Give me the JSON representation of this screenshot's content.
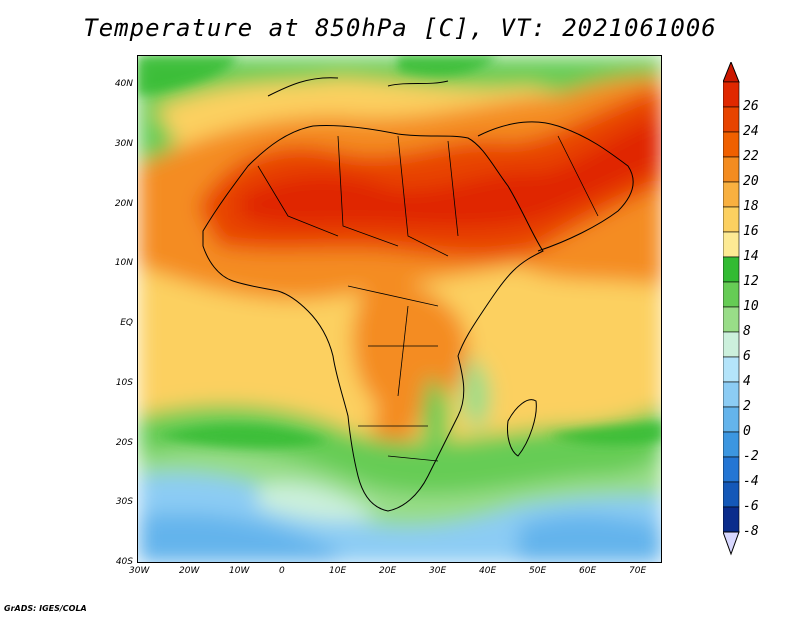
{
  "title": "Temperature at 850hPa [C], VT: 2021061006",
  "credit": "GrADS: IGES/COLA",
  "map": {
    "projection": "latlon",
    "lon_range": [
      -30,
      75
    ],
    "lat_range": [
      -40,
      45
    ],
    "x_ticks": [
      "30W",
      "20W",
      "10W",
      "0",
      "10E",
      "20E",
      "30E",
      "40E",
      "50E",
      "60E",
      "70E"
    ],
    "y_ticks": [
      "40N",
      "30N",
      "20N",
      "10N",
      "EQ",
      "10S",
      "20S",
      "30S",
      "40S"
    ],
    "colors": {
      "border": "#000000"
    }
  },
  "colorbar": {
    "labels": [
      "26",
      "24",
      "22",
      "20",
      "18",
      "16",
      "14",
      "12",
      "10",
      "8",
      "6",
      "4",
      "2",
      "0",
      "-2",
      "-4",
      "-6",
      "-8"
    ],
    "colors": [
      "#e02800",
      "#e84400",
      "#f06000",
      "#f48c20",
      "#f8b040",
      "#fcd060",
      "#fdea94",
      "#33bb33",
      "#66cc55",
      "#99dd88",
      "#ccf0dc",
      "#b4e4fa",
      "#8cccf4",
      "#64b4ec",
      "#3c96e0",
      "#2476d4",
      "#1458b8",
      "#0a2c8c"
    ]
  }
}
